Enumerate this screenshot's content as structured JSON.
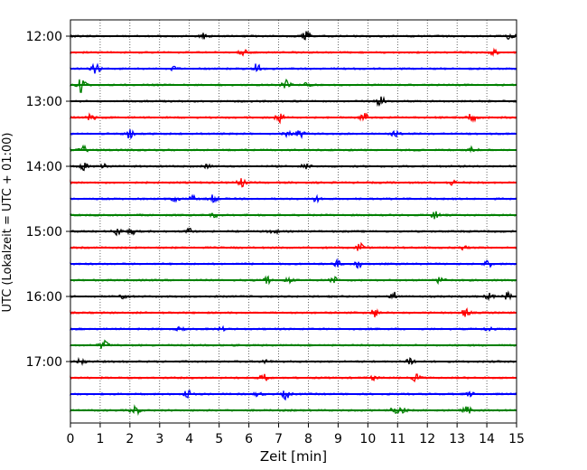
{
  "chart_data": {
    "type": "line",
    "title": "",
    "xlabel": "Zeit  [min]",
    "ylabel": "UTC (Lokalzeit = UTC + 01:00)",
    "xlim": [
      0,
      15
    ],
    "x_ticks": [
      "0",
      "1",
      "2",
      "3",
      "4",
      "5",
      "6",
      "7",
      "8",
      "9",
      "10",
      "11",
      "12",
      "13",
      "14",
      "15"
    ],
    "y_ticks": [
      "12:00",
      "13:00",
      "14:00",
      "15:00",
      "16:00",
      "17:00"
    ],
    "grid": "vertical dotted at each minute",
    "trace_interval_minutes": 15,
    "trace_colors": [
      "#000000",
      "#ff0000",
      "#0000ff",
      "#008000"
    ],
    "traces": [
      {
        "start": "12:00",
        "color": "#000000"
      },
      {
        "start": "12:15",
        "color": "#ff0000"
      },
      {
        "start": "12:30",
        "color": "#0000ff"
      },
      {
        "start": "12:45",
        "color": "#008000"
      },
      {
        "start": "13:00",
        "color": "#000000"
      },
      {
        "start": "13:15",
        "color": "#ff0000"
      },
      {
        "start": "13:30",
        "color": "#0000ff"
      },
      {
        "start": "13:45",
        "color": "#008000"
      },
      {
        "start": "14:00",
        "color": "#000000"
      },
      {
        "start": "14:15",
        "color": "#ff0000"
      },
      {
        "start": "14:30",
        "color": "#0000ff"
      },
      {
        "start": "14:45",
        "color": "#008000"
      },
      {
        "start": "15:00",
        "color": "#000000"
      },
      {
        "start": "15:15",
        "color": "#ff0000"
      },
      {
        "start": "15:30",
        "color": "#0000ff"
      },
      {
        "start": "15:45",
        "color": "#008000"
      },
      {
        "start": "16:00",
        "color": "#000000"
      },
      {
        "start": "16:15",
        "color": "#ff0000"
      },
      {
        "start": "16:30",
        "color": "#0000ff"
      },
      {
        "start": "16:45",
        "color": "#008000"
      },
      {
        "start": "17:00",
        "color": "#000000"
      },
      {
        "start": "17:15",
        "color": "#ff0000"
      },
      {
        "start": "17:30",
        "color": "#0000ff"
      },
      {
        "start": "17:45",
        "color": "#008000"
      }
    ]
  }
}
